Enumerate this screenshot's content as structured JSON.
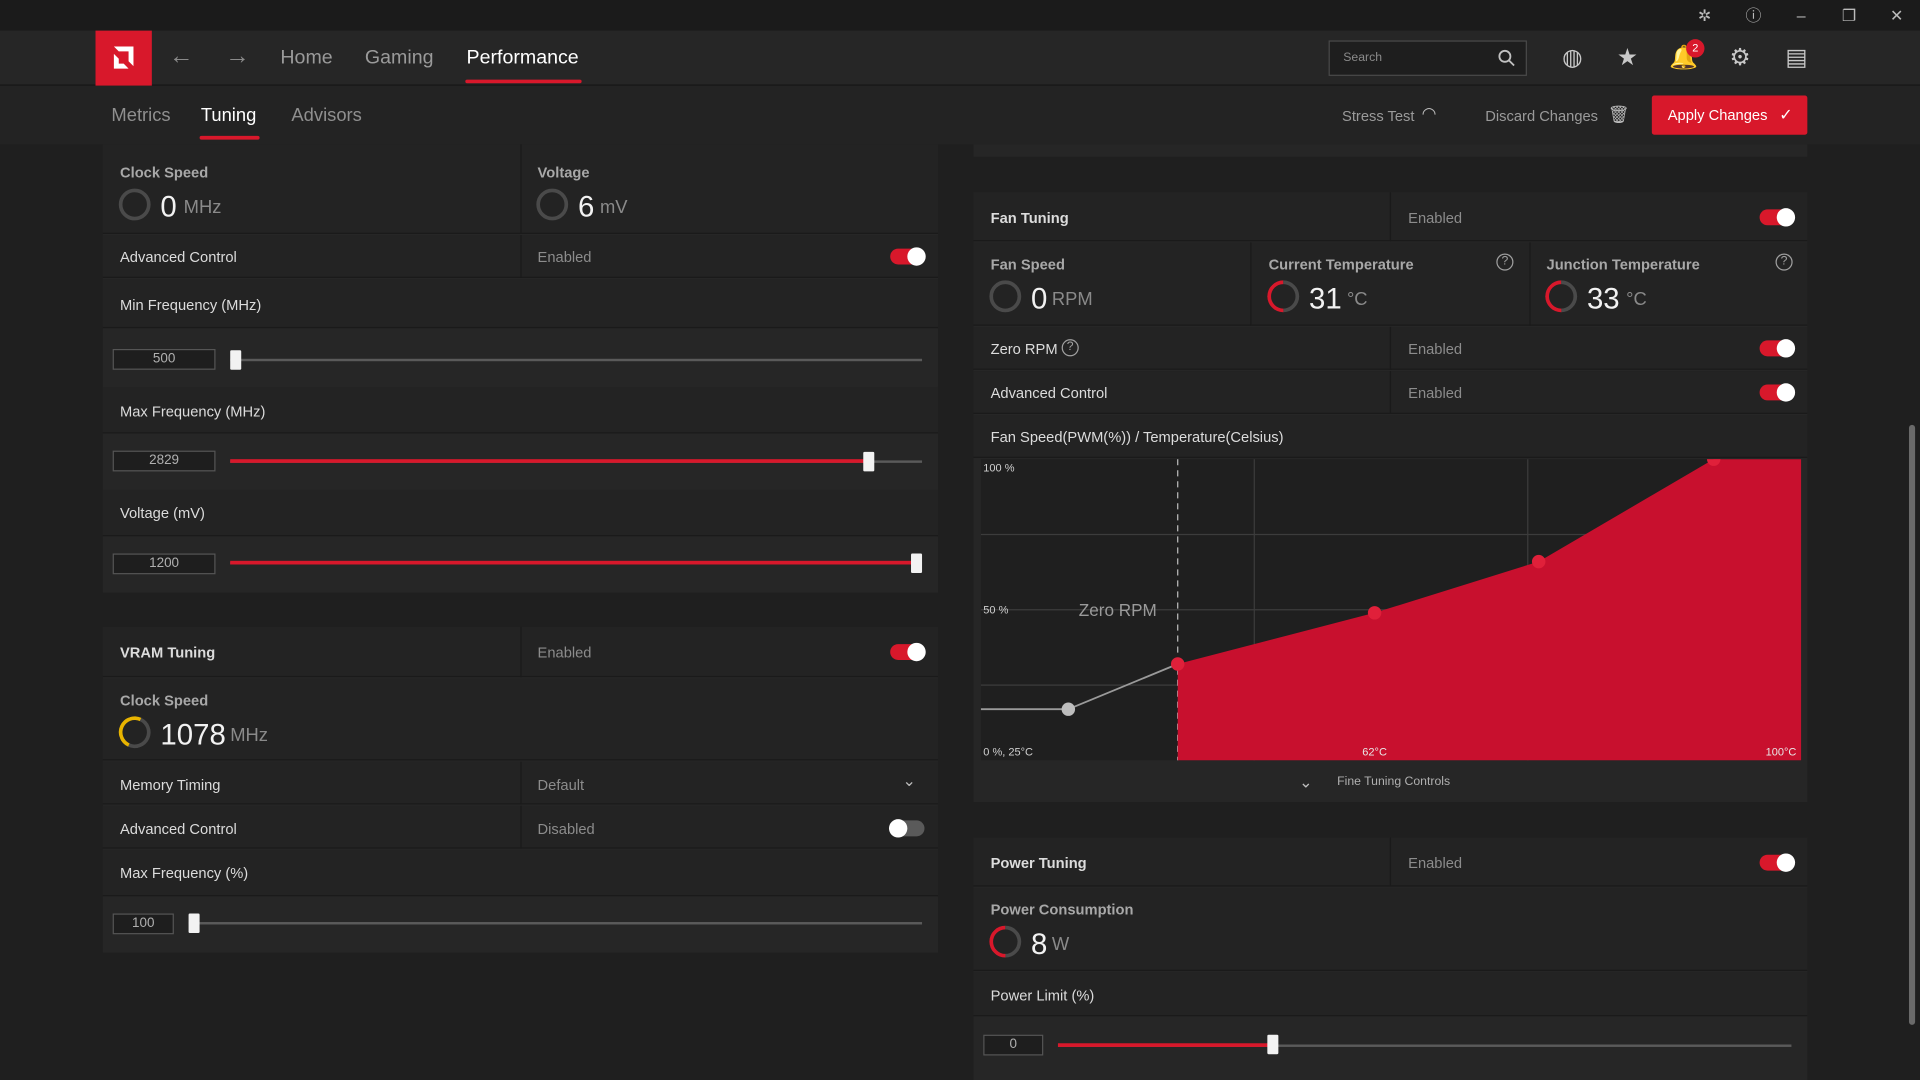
{
  "nav": {
    "home": "Home",
    "gaming": "Gaming",
    "performance": "Performance",
    "search_placeholder": "Search",
    "notification_count": "2"
  },
  "subnav": {
    "metrics": "Metrics",
    "tuning": "Tuning",
    "advisors": "Advisors",
    "stress_test": "Stress Test",
    "discard_changes": "Discard Changes",
    "apply_changes": "Apply Changes"
  },
  "gpu_tuning": {
    "clock_speed_label": "Clock Speed",
    "clock_speed_value": "0",
    "clock_speed_unit": "MHz",
    "voltage_label": "Voltage",
    "voltage_value": "6",
    "voltage_unit": "mV",
    "advanced_control_label": "Advanced Control",
    "advanced_control_status": "Enabled",
    "min_freq_label": "Min Frequency (MHz)",
    "min_freq_value": "500",
    "min_freq_fraction": 0.0,
    "max_freq_label": "Max Frequency (MHz)",
    "max_freq_value": "2829",
    "max_freq_fraction": 0.93,
    "voltage_mv_label": "Voltage (mV)",
    "voltage_mv_value": "1200",
    "voltage_mv_fraction": 1.0
  },
  "vram_tuning": {
    "title": "VRAM Tuning",
    "status": "Enabled",
    "clock_speed_label": "Clock Speed",
    "clock_speed_value": "1078",
    "clock_speed_unit": "MHz",
    "memory_timing_label": "Memory Timing",
    "memory_timing_value": "Default",
    "advanced_control_label": "Advanced Control",
    "advanced_control_status": "Disabled",
    "max_freq_label": "Max Frequency (%)",
    "max_freq_value": "100",
    "max_freq_fraction": 0.0
  },
  "fan_tuning": {
    "title": "Fan Tuning",
    "status": "Enabled",
    "fan_speed_label": "Fan Speed",
    "fan_speed_value": "0",
    "fan_speed_unit": "RPM",
    "current_temp_label": "Current Temperature",
    "current_temp_value": "31",
    "temp_unit": "°C",
    "junction_temp_label": "Junction Temperature",
    "junction_temp_value": "33",
    "zero_rpm_label": "Zero RPM",
    "zero_rpm_status": "Enabled",
    "advanced_control_label": "Advanced Control",
    "advanced_control_status": "Enabled",
    "curve_title": "Fan Speed(PWM(%)) / Temperature(Celsius)",
    "fine_tuning": "Fine Tuning Controls"
  },
  "chart_data": {
    "type": "area",
    "title": "Fan Speed(PWM(%)) / Temperature(Celsius)",
    "xlabel": "",
    "ylabel": "",
    "xlim": [
      25,
      100
    ],
    "ylim": [
      0,
      100
    ],
    "y_tick_labels": [
      "100 %",
      "50 %"
    ],
    "x_tick_labels": [
      "0 %, 25°C",
      "62°C",
      "100°C"
    ],
    "annotation": "Zero RPM",
    "zero_rpm_threshold_c": 43,
    "series": [
      {
        "x": [
          33,
          43,
          61,
          76,
          92
        ],
        "y": [
          17,
          32,
          49,
          66,
          100
        ]
      }
    ],
    "colors": {
      "fill": "#c8102e",
      "point": "#e0203a",
      "zero_rpm_point": "#bdbdbd"
    }
  },
  "power_tuning": {
    "title": "Power Tuning",
    "status": "Enabled",
    "consumption_label": "Power Consumption",
    "consumption_value": "8",
    "consumption_unit": "W",
    "limit_label": "Power Limit (%)",
    "limit_value": "0",
    "limit_fraction": 0.29
  },
  "colors": {
    "accent": "#d8182b",
    "background": "#1f1f1f"
  }
}
